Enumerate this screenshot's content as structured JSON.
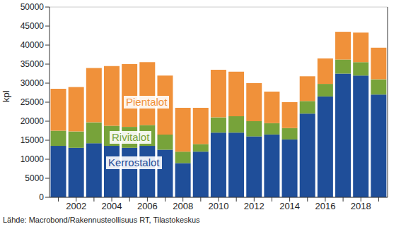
{
  "chart_data": {
    "type": "bar",
    "stacked": true,
    "grid": true,
    "y_label": "kpl",
    "source": "Lähde: Macrobond/Rakennusteollisuus RT, Tilastokeskus",
    "categories": [
      null,
      "2002",
      null,
      "2004",
      null,
      "2006",
      null,
      "2008",
      null,
      "2010",
      null,
      "2012",
      null,
      "2014",
      null,
      "2016",
      null,
      "2018",
      null
    ],
    "series": [
      {
        "name": "Kerrostalot",
        "color": "#1f4e99",
        "values": [
          13500,
          13000,
          14200,
          13500,
          13000,
          13500,
          12500,
          9000,
          12000,
          17000,
          17000,
          16000,
          16500,
          15200,
          22000,
          26500,
          32500,
          32000,
          27000
        ]
      },
      {
        "name": "Rivitalot",
        "color": "#77a33a",
        "values": [
          4000,
          4300,
          5500,
          5300,
          5500,
          5500,
          4000,
          3000,
          2000,
          4000,
          4300,
          4000,
          3000,
          3000,
          3300,
          3300,
          3700,
          3500,
          4000
        ]
      },
      {
        "name": "Pientalot",
        "color": "#f0913a",
        "values": [
          11000,
          11700,
          14300,
          15700,
          16500,
          16500,
          15500,
          11500,
          9500,
          12500,
          11700,
          10000,
          8300,
          6800,
          6500,
          6700,
          7300,
          7800,
          8300
        ]
      }
    ],
    "ylim": [
      0,
      50000
    ],
    "yticks": [
      0,
      5000,
      10000,
      15000,
      20000,
      25000,
      30000,
      35000,
      40000,
      45000,
      50000
    ]
  }
}
